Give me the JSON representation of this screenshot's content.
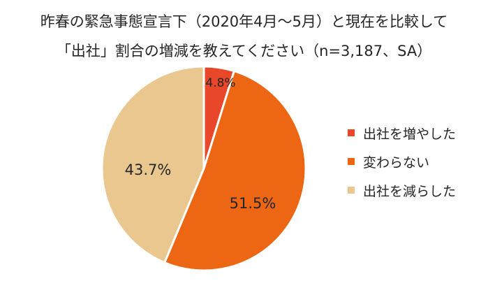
{
  "chart_data": {
    "type": "pie",
    "title_lines": [
      "昨春の緊急事態宣言下（2020年4月～5月）と現在を比較して",
      "「出社」割合の増減を教えてください（n=3,187、SA）"
    ],
    "legend_position": "right",
    "slices": [
      {
        "label": "出社を増やした",
        "value": 4.8,
        "value_label": "4.8%",
        "color": "#E8472A"
      },
      {
        "label": "変わらない",
        "value": 51.5,
        "value_label": "51.5%",
        "color": "#EC6613"
      },
      {
        "label": "出社を減らした",
        "value": 43.7,
        "value_label": "43.7%",
        "color": "#E9C78E"
      }
    ]
  }
}
